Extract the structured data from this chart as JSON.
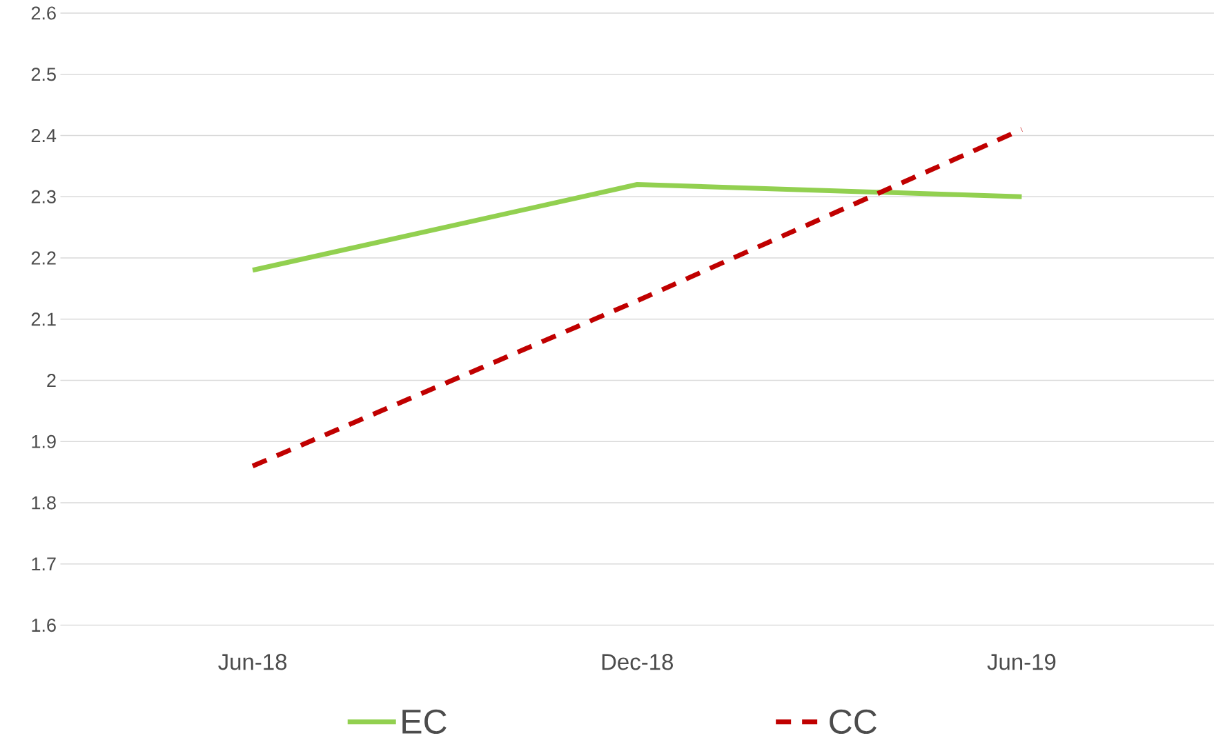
{
  "chart_data": {
    "type": "line",
    "categories": [
      "Jun-18",
      "Dec-18",
      "Jun-19"
    ],
    "series": [
      {
        "name": "EC",
        "color": "#92d050",
        "values": [
          2.18,
          2.32,
          2.3
        ],
        "line_style": "solid"
      },
      {
        "name": "CC",
        "color": "#c00000",
        "values": [
          1.86,
          2.13,
          2.41
        ],
        "line_style": "dashed"
      }
    ],
    "ylim": [
      1.6,
      2.6
    ],
    "yticks": [
      1.6,
      1.7,
      1.8,
      1.9,
      2,
      2.1,
      2.2,
      2.3,
      2.4,
      2.5,
      2.6
    ],
    "grid": "y",
    "legend": "bottom",
    "marker": "none"
  }
}
